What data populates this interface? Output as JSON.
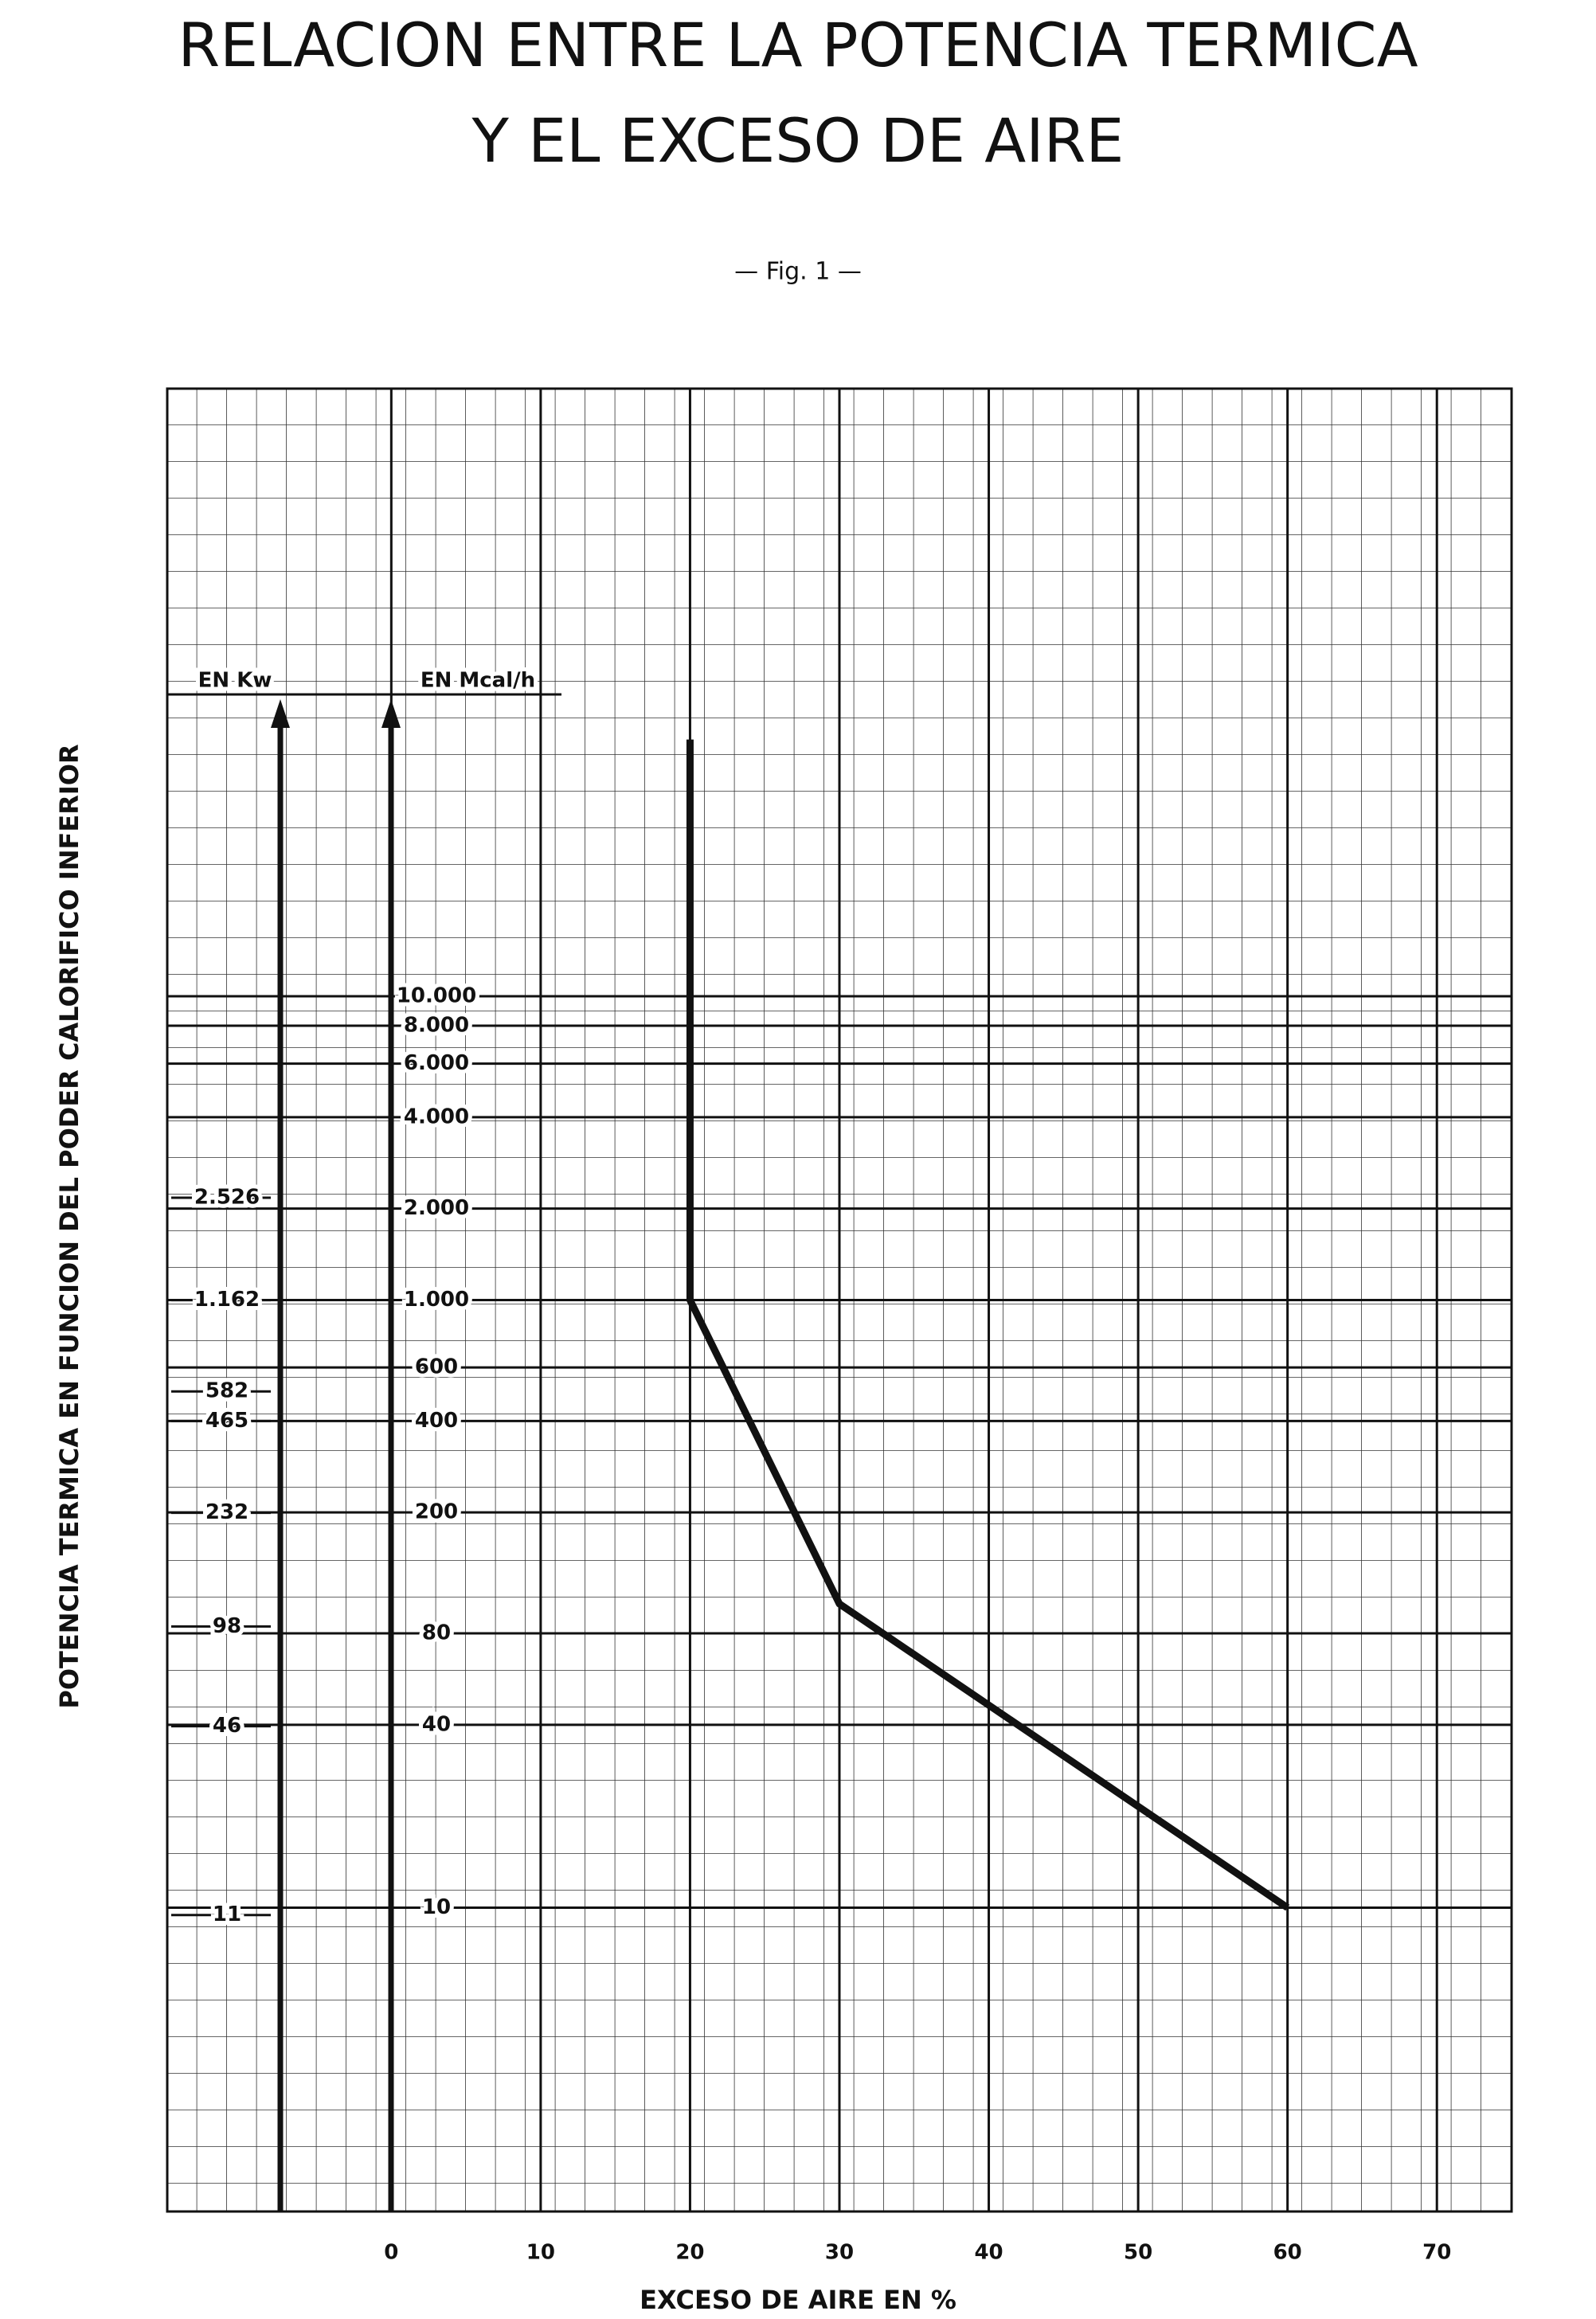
{
  "chart_data": {
    "type": "line",
    "title": [
      "RELACION ENTRE LA POTENCIA TERMICA",
      "Y EL EXCESO DE AIRE"
    ],
    "subtitle": "— Fig. 1 —",
    "x_label": "EXCESO DE AIRE EN %",
    "y_label": "POTENCIA TERMICA EN FUNCION DEL PODER CALORIFICO INFERIOR",
    "y_axis_label": "EN Mcal/h",
    "y2_axis_label": "EN Kw",
    "x": [
      20,
      20,
      30,
      60
    ],
    "series": [
      {
        "name": "Exceso de aire",
        "color": "#111111",
        "values": [
          70000,
          1000,
          100,
          10
        ]
      }
    ],
    "xlim": [
      -15,
      75
    ],
    "xticks": [
      0,
      10,
      20,
      30,
      40,
      50,
      60,
      70
    ],
    "ylim": [
      1,
      1000000
    ],
    "y_scale": "log",
    "yticks": [
      10,
      40,
      80,
      200,
      400,
      600,
      {
        "value": 1000,
        "label": "1.000"
      },
      {
        "value": 2000,
        "label": "2.000"
      },
      {
        "value": 4000,
        "label": "4.000"
      },
      {
        "value": 6000,
        "label": "6.000"
      },
      {
        "value": 8000,
        "label": "8.000"
      },
      {
        "value": 10000,
        "label": "10.000"
      }
    ],
    "y2lim": [
      1.163,
      1163000
    ],
    "y2ticks": [
      11,
      46,
      98,
      232,
      465,
      582,
      {
        "value": 1162,
        "label": "1.162"
      },
      {
        "value": 2526,
        "label": "2.526"
      }
    ],
    "grid": true
  }
}
